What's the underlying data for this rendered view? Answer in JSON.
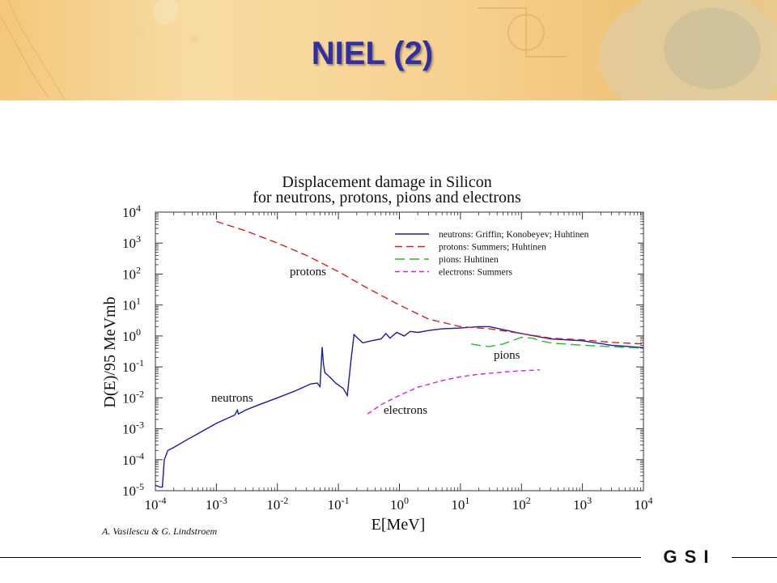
{
  "slide": {
    "title": "NIEL (2)",
    "credit": "A. Vasilescu & G. Lindstroem",
    "logo_text": "GSI"
  },
  "chart_data": {
    "type": "line",
    "title": "Displacement damage in Silicon",
    "subtitle": "for neutrons, protons, pions and electrons",
    "xlabel": "E[MeV]",
    "ylabel": "D(E)/95 MeVmb",
    "xscale": "log",
    "yscale": "log",
    "xlim": [
      0.0001,
      10000
    ],
    "ylim": [
      1e-05,
      10000
    ],
    "x_ticks": [
      {
        "value": 0.0001,
        "base": "10",
        "exp": "-4"
      },
      {
        "value": 0.001,
        "base": "10",
        "exp": "-3"
      },
      {
        "value": 0.01,
        "base": "10",
        "exp": "-2"
      },
      {
        "value": 0.1,
        "base": "10",
        "exp": "-1"
      },
      {
        "value": 1,
        "base": "10",
        "exp": "0"
      },
      {
        "value": 10,
        "base": "10",
        "exp": "1"
      },
      {
        "value": 100,
        "base": "10",
        "exp": "2"
      },
      {
        "value": 1000,
        "base": "10",
        "exp": "3"
      },
      {
        "value": 10000,
        "base": "10",
        "exp": "4"
      }
    ],
    "y_ticks": [
      {
        "value": 1e-05,
        "base": "10",
        "exp": "-5"
      },
      {
        "value": 0.0001,
        "base": "10",
        "exp": "-4"
      },
      {
        "value": 0.001,
        "base": "10",
        "exp": "-3"
      },
      {
        "value": 0.01,
        "base": "10",
        "exp": "-2"
      },
      {
        "value": 0.1,
        "base": "10",
        "exp": "-1"
      },
      {
        "value": 1,
        "base": "10",
        "exp": "0"
      },
      {
        "value": 10,
        "base": "10",
        "exp": "1"
      },
      {
        "value": 100,
        "base": "10",
        "exp": "2"
      },
      {
        "value": 1000,
        "base": "10",
        "exp": "3"
      },
      {
        "value": 10000,
        "base": "10",
        "exp": "4"
      }
    ],
    "grid": false,
    "legend_position": "top-right",
    "series": [
      {
        "name": "neutrons: Griffin; Konobeyev; Huhtinen",
        "label": "neutrons",
        "color": "#1a1aa6",
        "dash": "solid",
        "x": [
          0.0001,
          0.00012,
          0.00013,
          0.00014,
          0.00016,
          0.0002,
          0.0003,
          0.0005,
          0.001,
          0.002,
          0.0022,
          0.0023,
          0.0025,
          0.003,
          0.005,
          0.01,
          0.02,
          0.035,
          0.045,
          0.05,
          0.054,
          0.057,
          0.06,
          0.07,
          0.09,
          0.12,
          0.14,
          0.16,
          0.18,
          0.2,
          0.25,
          0.35,
          0.5,
          0.6,
          0.7,
          0.9,
          1.2,
          1.5,
          2,
          3,
          5,
          10,
          20,
          30,
          50,
          100,
          300,
          1000,
          3000,
          10000
        ],
        "y": [
          1.5e-05,
          1.3e-05,
          1.3e-05,
          0.0001,
          0.0002,
          0.00025,
          0.0004,
          0.0007,
          0.0015,
          0.0028,
          0.004,
          0.003,
          0.0033,
          0.004,
          0.006,
          0.01,
          0.017,
          0.028,
          0.03,
          0.023,
          0.44,
          0.12,
          0.065,
          0.05,
          0.03,
          0.02,
          0.012,
          0.15,
          1.1,
          0.9,
          0.6,
          0.7,
          0.8,
          1.2,
          0.85,
          1.3,
          1.0,
          1.4,
          1.3,
          1.5,
          1.7,
          1.8,
          2.0,
          2.0,
          1.6,
          1.2,
          0.8,
          0.7,
          0.5,
          0.42
        ]
      },
      {
        "name": "protons: Summers; Huhtinen",
        "label": "protons",
        "color": "#d42020",
        "dash": "9,5",
        "x": [
          0.001,
          0.003,
          0.01,
          0.03,
          0.1,
          0.3,
          1,
          3,
          10,
          30,
          100,
          300,
          1000,
          3000,
          10000
        ],
        "y": [
          5000,
          2500,
          1000,
          400,
          120,
          35,
          10,
          3.5,
          2.0,
          1.7,
          1.2,
          0.85,
          0.75,
          0.62,
          0.55
        ]
      },
      {
        "name": "pions: Huhtinen",
        "label": "pions",
        "color": "#20c020",
        "dash": "12,6",
        "x": [
          15,
          20,
          30,
          50,
          70,
          100,
          150,
          200,
          300,
          500,
          1000,
          3000,
          10000
        ],
        "y": [
          0.55,
          0.5,
          0.45,
          0.55,
          0.7,
          0.9,
          0.85,
          0.7,
          0.6,
          0.55,
          0.5,
          0.45,
          0.4
        ]
      },
      {
        "name": "electrons: Summers",
        "label": "electrons",
        "color": "#e020d0",
        "dash": "6,4",
        "x": [
          0.3,
          0.5,
          1,
          2,
          5,
          10,
          20,
          50,
          100,
          200
        ],
        "y": [
          0.003,
          0.006,
          0.012,
          0.022,
          0.036,
          0.048,
          0.058,
          0.068,
          0.075,
          0.08
        ]
      }
    ]
  }
}
